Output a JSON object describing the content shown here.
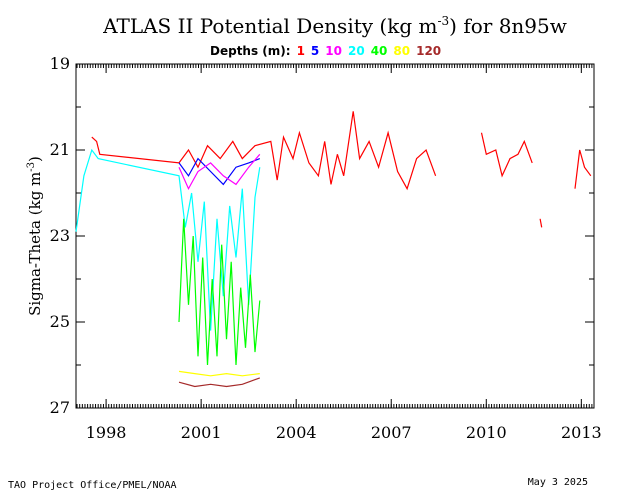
{
  "chart_data": {
    "type": "line",
    "title": {
      "prefix": "ATLAS II Potential Density (kg m",
      "superscript": "-3",
      "suffix": ") for 8n95w"
    },
    "legend": {
      "label": "Depths (m):",
      "position": "top-center"
    },
    "ylabel": {
      "prefix": "Sigma-Theta (kg m",
      "superscript": "-3",
      "suffix": ")"
    },
    "x_ticks": [
      "1998",
      "2001",
      "2004",
      "2007",
      "2010",
      "2013"
    ],
    "x_tick_values": [
      1998.0,
      2001.0,
      2004.0,
      2007.0,
      2010.0,
      2013.0
    ],
    "xlim": [
      1997.05,
      2013.4
    ],
    "y_ticks": [
      "19",
      "21",
      "23",
      "25",
      "27"
    ],
    "y_tick_values": [
      19,
      21,
      23,
      25,
      27
    ],
    "ylim": [
      27,
      19
    ],
    "y_inverted": true,
    "grid": false,
    "series": [
      {
        "name": "1",
        "color": "#ff0000",
        "points": [
          [
            1997.55,
            20.7
          ],
          [
            1997.7,
            20.8
          ],
          [
            1997.8,
            21.1
          ],
          [
            2000.3,
            21.3
          ],
          [
            2000.6,
            21.0
          ],
          [
            2000.9,
            21.4
          ],
          [
            2001.2,
            20.9
          ],
          [
            2001.6,
            21.2
          ],
          [
            2002.0,
            20.8
          ],
          [
            2002.3,
            21.2
          ],
          [
            2002.7,
            20.9
          ],
          [
            2003.2,
            20.8
          ],
          [
            2003.4,
            21.7
          ],
          [
            2003.6,
            20.7
          ],
          [
            2003.9,
            21.2
          ],
          [
            2004.1,
            20.6
          ],
          [
            2004.4,
            21.3
          ],
          [
            2004.7,
            21.6
          ],
          [
            2004.9,
            20.8
          ],
          [
            2005.1,
            21.8
          ],
          [
            2005.3,
            21.1
          ],
          [
            2005.5,
            21.6
          ],
          [
            2005.8,
            20.1
          ],
          [
            2006.0,
            21.2
          ],
          [
            2006.3,
            20.8
          ],
          [
            2006.6,
            21.4
          ],
          [
            2006.9,
            20.6
          ],
          [
            2007.2,
            21.5
          ],
          [
            2007.5,
            21.9
          ],
          [
            2007.8,
            21.2
          ],
          [
            2008.1,
            21.0
          ],
          [
            2008.4,
            21.6
          ]
        ]
      },
      {
        "name": "1",
        "color": "#ff0000",
        "points": [
          [
            2009.85,
            20.6
          ],
          [
            2010.0,
            21.1
          ],
          [
            2010.3,
            21.0
          ],
          [
            2010.5,
            21.6
          ],
          [
            2010.75,
            21.2
          ],
          [
            2011.0,
            21.1
          ],
          [
            2011.2,
            20.8
          ],
          [
            2011.45,
            21.3
          ]
        ]
      },
      {
        "name": "1",
        "color": "#ff0000",
        "points": [
          [
            2011.7,
            22.6
          ],
          [
            2011.75,
            22.8
          ]
        ]
      },
      {
        "name": "1",
        "color": "#ff0000",
        "points": [
          [
            2012.8,
            21.9
          ],
          [
            2012.95,
            21.0
          ],
          [
            2013.1,
            21.4
          ],
          [
            2013.3,
            21.6
          ]
        ]
      },
      {
        "name": "5",
        "color": "#0000ff",
        "points": [
          [
            2000.3,
            21.3
          ],
          [
            2000.6,
            21.6
          ],
          [
            2000.9,
            21.2
          ],
          [
            2001.3,
            21.5
          ],
          [
            2001.7,
            21.8
          ],
          [
            2002.1,
            21.4
          ],
          [
            2002.5,
            21.3
          ],
          [
            2002.85,
            21.2
          ]
        ]
      },
      {
        "name": "10",
        "color": "#ff00ff",
        "points": [
          [
            2000.3,
            21.4
          ],
          [
            2000.6,
            21.9
          ],
          [
            2000.9,
            21.5
          ],
          [
            2001.3,
            21.3
          ],
          [
            2001.7,
            21.6
          ],
          [
            2002.1,
            21.8
          ],
          [
            2002.5,
            21.4
          ],
          [
            2002.85,
            21.1
          ]
        ]
      },
      {
        "name": "20",
        "color": "#00ffff",
        "points": [
          [
            1997.05,
            22.9
          ],
          [
            1997.3,
            21.6
          ],
          [
            1997.55,
            21.0
          ],
          [
            1997.75,
            21.2
          ],
          [
            2000.3,
            21.6
          ],
          [
            2000.5,
            22.8
          ],
          [
            2000.7,
            22.0
          ],
          [
            2000.9,
            23.6
          ],
          [
            2001.1,
            22.2
          ],
          [
            2001.3,
            25.2
          ],
          [
            2001.5,
            22.6
          ],
          [
            2001.7,
            24.4
          ],
          [
            2001.9,
            22.3
          ],
          [
            2002.1,
            23.5
          ],
          [
            2002.3,
            21.9
          ],
          [
            2002.5,
            24.6
          ],
          [
            2002.7,
            22.1
          ],
          [
            2002.85,
            21.4
          ]
        ]
      },
      {
        "name": "40",
        "color": "#00ff00",
        "points": [
          [
            2000.3,
            25.0
          ],
          [
            2000.45,
            22.6
          ],
          [
            2000.6,
            24.6
          ],
          [
            2000.75,
            23.0
          ],
          [
            2000.9,
            25.8
          ],
          [
            2001.05,
            23.5
          ],
          [
            2001.2,
            26.0
          ],
          [
            2001.35,
            24.0
          ],
          [
            2001.5,
            25.8
          ],
          [
            2001.65,
            23.2
          ],
          [
            2001.8,
            25.4
          ],
          [
            2001.95,
            23.6
          ],
          [
            2002.1,
            26.0
          ],
          [
            2002.25,
            24.2
          ],
          [
            2002.4,
            25.6
          ],
          [
            2002.55,
            23.9
          ],
          [
            2002.7,
            25.7
          ],
          [
            2002.85,
            24.5
          ]
        ]
      },
      {
        "name": "80",
        "color": "#ffff00",
        "points": [
          [
            2000.3,
            26.15
          ],
          [
            2000.8,
            26.2
          ],
          [
            2001.3,
            26.25
          ],
          [
            2001.8,
            26.2
          ],
          [
            2002.3,
            26.25
          ],
          [
            2002.85,
            26.2
          ]
        ]
      },
      {
        "name": "120",
        "color": "#a52a2a",
        "points": [
          [
            2000.3,
            26.4
          ],
          [
            2000.8,
            26.5
          ],
          [
            2001.3,
            26.45
          ],
          [
            2001.8,
            26.5
          ],
          [
            2002.3,
            26.45
          ],
          [
            2002.85,
            26.3
          ]
        ]
      }
    ],
    "legend_items": [
      {
        "label": "1",
        "color": "#ff0000"
      },
      {
        "label": "5",
        "color": "#0000ff"
      },
      {
        "label": "10",
        "color": "#ff00ff"
      },
      {
        "label": "20",
        "color": "#00ffff"
      },
      {
        "label": "40",
        "color": "#00ff00"
      },
      {
        "label": "80",
        "color": "#ffff00"
      },
      {
        "label": "120",
        "color": "#a52a2a"
      }
    ]
  },
  "footer": {
    "source": "TAO Project Office/PMEL/NOAA",
    "date": "May  3 2025"
  }
}
